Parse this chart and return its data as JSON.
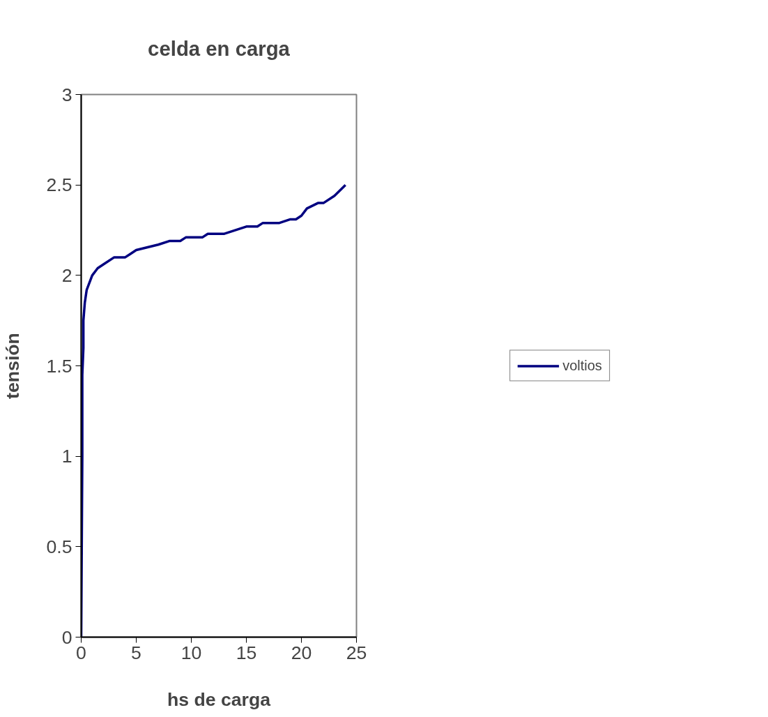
{
  "chart_data": {
    "type": "line",
    "title": "celda en carga",
    "xlabel": "hs de carga",
    "ylabel": "tensión",
    "x": [
      0,
      0.05,
      0.1,
      0.1,
      0.2,
      0.2,
      0.33,
      0.5,
      1,
      1.5,
      2,
      3,
      4,
      4.5,
      5,
      7,
      8,
      9,
      9.5,
      11,
      11.5,
      13,
      15,
      16,
      16.5,
      18,
      19,
      19.5,
      20,
      20.5,
      21.5,
      22,
      23,
      24
    ],
    "series": [
      {
        "name": "voltios",
        "color": "#000080",
        "values": [
          0,
          0.5,
          1.0,
          1.45,
          1.6,
          1.75,
          1.85,
          1.92,
          2.0,
          2.04,
          2.06,
          2.1,
          2.1,
          2.12,
          2.14,
          2.17,
          2.19,
          2.19,
          2.21,
          2.21,
          2.23,
          2.23,
          2.27,
          2.27,
          2.29,
          2.29,
          2.31,
          2.31,
          2.33,
          2.37,
          2.4,
          2.4,
          2.44,
          2.5
        ]
      }
    ],
    "xlim": [
      0,
      25
    ],
    "xticks": [
      0,
      5,
      10,
      15,
      20,
      25
    ],
    "ylim": [
      0,
      3
    ],
    "yticks": [
      0,
      0.5,
      1,
      1.5,
      2,
      2.5,
      3
    ],
    "grid": false,
    "legend": "right",
    "marker": "none",
    "line_style": "solid"
  }
}
